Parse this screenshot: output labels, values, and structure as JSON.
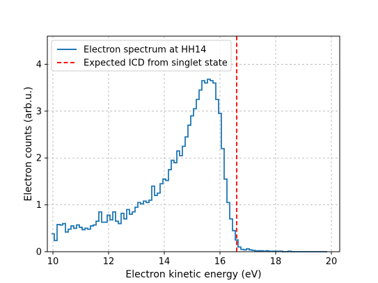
{
  "chart_data": {
    "type": "line",
    "title": "",
    "xlabel": "Electron kinetic energy (eV)",
    "ylabel": "Electron counts (arb.u.)",
    "xlim": [
      9.8,
      20.3
    ],
    "ylim": [
      0,
      4.6
    ],
    "x_ticks": [
      10,
      12,
      14,
      16,
      18,
      20
    ],
    "y_ticks": [
      0,
      1,
      2,
      3,
      4
    ],
    "grid": true,
    "grid_style": "dashed",
    "legend_position": "upper left",
    "series": [
      {
        "name": "Electron spectrum at HH14",
        "style": "steps-mid",
        "color": "#1f77b4",
        "bin_width": 0.1,
        "x": [
          10.0,
          10.1,
          10.2,
          10.3,
          10.4,
          10.5,
          10.6,
          10.7,
          10.8,
          10.9,
          11.0,
          11.1,
          11.2,
          11.3,
          11.4,
          11.5,
          11.6,
          11.7,
          11.8,
          11.9,
          12.0,
          12.1,
          12.2,
          12.3,
          12.4,
          12.5,
          12.6,
          12.7,
          12.8,
          12.9,
          13.0,
          13.1,
          13.2,
          13.3,
          13.4,
          13.5,
          13.6,
          13.7,
          13.8,
          13.9,
          14.0,
          14.1,
          14.2,
          14.3,
          14.4,
          14.5,
          14.6,
          14.7,
          14.8,
          14.9,
          15.0,
          15.1,
          15.2,
          15.3,
          15.4,
          15.5,
          15.6,
          15.7,
          15.8,
          15.9,
          16.0,
          16.1,
          16.2,
          16.3,
          16.4,
          16.5,
          16.6,
          16.7,
          16.8,
          16.9,
          17.0,
          17.1,
          17.2,
          17.3,
          17.4,
          17.5,
          17.6,
          17.7,
          17.8,
          17.9,
          18.0,
          18.1,
          18.2,
          18.3,
          18.4,
          18.5,
          18.6,
          18.7,
          18.8,
          18.9,
          19.0,
          19.1,
          19.2,
          19.3,
          19.4,
          19.5,
          19.6,
          19.7,
          19.8
        ],
        "y": [
          0.38,
          0.24,
          0.58,
          0.57,
          0.6,
          0.42,
          0.48,
          0.55,
          0.5,
          0.57,
          0.52,
          0.47,
          0.5,
          0.48,
          0.55,
          0.57,
          0.65,
          0.85,
          0.63,
          0.63,
          0.78,
          0.68,
          0.85,
          0.65,
          0.6,
          0.82,
          0.7,
          0.9,
          0.8,
          0.85,
          0.95,
          1.05,
          1.02,
          1.08,
          1.05,
          1.1,
          1.4,
          1.2,
          1.25,
          1.45,
          1.55,
          1.52,
          1.75,
          1.95,
          1.9,
          2.15,
          2.05,
          2.25,
          2.45,
          2.7,
          2.9,
          3.05,
          3.25,
          3.45,
          3.65,
          3.6,
          3.68,
          3.65,
          3.6,
          3.25,
          2.95,
          2.2,
          1.55,
          1.05,
          0.7,
          0.45,
          0.25,
          0.1,
          0.05,
          0.04,
          0.06,
          0.04,
          0.03,
          0.02,
          0.02,
          0.02,
          0.01,
          0.02,
          0.01,
          0.01,
          0.01,
          0.01,
          0.01,
          0.0,
          0.0,
          0.01,
          0.0,
          0.0,
          0.0,
          0.0,
          0.0,
          0.0,
          0.0,
          0.0,
          0.0,
          0.0,
          0.0,
          0.0,
          0.0
        ]
      },
      {
        "name": "Expected ICD from singlet state",
        "style": "vertical-line",
        "color": "#ff0000",
        "dashed": true,
        "x": 16.6
      }
    ]
  }
}
